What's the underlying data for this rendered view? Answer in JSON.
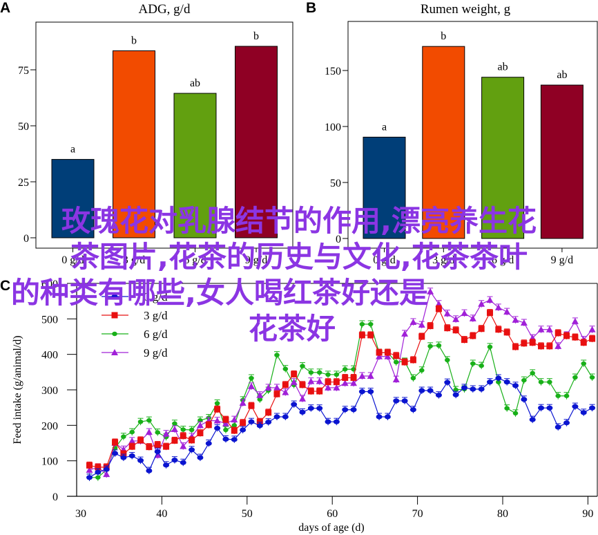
{
  "watermark": {
    "lines": [
      "玫瑰花对乳腺结节的作用,漂亮养生花",
      "茶图片,花茶的历史与文化,花茶茶叶",
      "的种类有哪些,女人喝红茶好还是",
      "花茶好"
    ],
    "color": "#8B35E3"
  },
  "chart_data": [
    {
      "panel": "A",
      "type": "bar",
      "title": "ADG, g/d",
      "xlabel": "",
      "ylabel": "",
      "categories": [
        "0 g/d",
        "3 g/d",
        "6 g/d",
        "9 g/d"
      ],
      "values": [
        35,
        83.5,
        64.5,
        85.5
      ],
      "significance": [
        "a",
        "b",
        "ab",
        "b"
      ],
      "colors": [
        "#003E78",
        "#F24B00",
        "#62A010",
        "#8F0024"
      ],
      "ylim": [
        0,
        95
      ],
      "yticks": [
        0,
        25,
        50,
        75
      ],
      "ytick_labels": [
        "0",
        "25",
        "50",
        "75"
      ],
      "grid": false
    },
    {
      "panel": "B",
      "type": "bar",
      "title": "Rumen weight, g",
      "xlabel": "",
      "ylabel": "",
      "categories": [
        "0 g/d",
        "3 g/d",
        "6 g/d",
        "9 g/d"
      ],
      "values": [
        90.5,
        171.5,
        144,
        137
      ],
      "significance": [
        "a",
        "b",
        "ab",
        "ab"
      ],
      "colors": [
        "#003E78",
        "#F24B00",
        "#62A010",
        "#8F0024"
      ],
      "ylim": [
        0,
        193
      ],
      "yticks": [
        0,
        50,
        100,
        150
      ],
      "ytick_labels": [
        "0",
        "50",
        "100",
        "150"
      ],
      "grid": false
    },
    {
      "panel": "C",
      "type": "line",
      "title": "",
      "xlabel": "days of age (d)",
      "ylabel": "Feed intake (g/animal/d)",
      "xlim": [
        30,
        91
      ],
      "ylim": [
        0,
        600
      ],
      "xticks": [
        30,
        40,
        50,
        60,
        70,
        80,
        90
      ],
      "xtick_labels": [
        "30",
        "40",
        "50",
        "60",
        "70",
        "80",
        "90"
      ],
      "yticks": [
        0,
        100,
        200,
        300,
        400,
        500,
        600
      ],
      "ytick_labels": [
        "0",
        "100",
        "200",
        "300",
        "400",
        "500",
        "600"
      ],
      "legend_position": "top-left",
      "grid": false,
      "x": [
        31,
        32,
        33,
        34,
        35,
        36,
        37,
        38,
        39,
        40,
        41,
        42,
        43,
        44,
        45,
        46,
        47,
        48,
        49,
        50,
        51,
        52,
        53,
        54,
        55,
        56,
        57,
        58,
        59,
        60,
        61,
        62,
        63,
        64,
        65,
        66,
        67,
        68,
        69,
        70,
        71,
        72,
        73,
        74,
        75,
        76,
        77,
        78,
        79,
        80,
        81,
        82,
        83,
        84,
        85,
        86,
        87,
        88,
        89,
        90
      ],
      "series": [
        {
          "name": "0 g/d",
          "color": "#0A14D0",
          "marker": "circle",
          "values": [
            53,
            68,
            76,
            121,
            109,
            114,
            101,
            72,
            126,
            88,
            102,
            95,
            131,
            109,
            149,
            192,
            161,
            160,
            187,
            210,
            199,
            209,
            224,
            224,
            259,
            237,
            248,
            248,
            210,
            210,
            244,
            244,
            295,
            295,
            224,
            224,
            269,
            269,
            244,
            298,
            298,
            285,
            321,
            286,
            306,
            302,
            302,
            322,
            333,
            322,
            312,
            273,
            216,
            249,
            249,
            195,
            207,
            253,
            236,
            249
          ]
        },
        {
          "name": "3 g/d",
          "color": "#E81010",
          "marker": "square",
          "values": [
            87,
            82,
            82,
            152,
            119,
            140,
            158,
            139,
            145,
            140,
            157,
            170,
            158,
            178,
            201,
            245,
            216,
            185,
            207,
            255,
            210,
            236,
            288,
            314,
            344,
            314,
            296,
            296,
            322,
            322,
            334,
            334,
            454,
            454,
            405,
            405,
            396,
            378,
            384,
            450,
            480,
            528,
            474,
            468,
            441,
            452,
            472,
            517,
            470,
            462,
            421,
            431,
            433,
            423,
            423,
            460,
            452,
            448,
            433,
            444
          ]
        },
        {
          "name": "6 g/d",
          "color": "#18B018",
          "marker": "diamond",
          "values": [
            53,
            53,
            75,
            136,
            168,
            181,
            210,
            214,
            180,
            167,
            205,
            188,
            187,
            214,
            221,
            262,
            187,
            200,
            271,
            333,
            273,
            298,
            398,
            359,
            314,
            367,
            349,
            349,
            343,
            343,
            358,
            358,
            485,
            485,
            405,
            405,
            378,
            380,
            333,
            355,
            423,
            425,
            384,
            300,
            302,
            374,
            368,
            421,
            322,
            248,
            234,
            327,
            347,
            322,
            322,
            283,
            283,
            335,
            374,
            335
          ]
        },
        {
          "name": "9 g/d",
          "color": "#A020D8",
          "marker": "triangle",
          "values": [
            74,
            82,
            62,
            150,
            132,
            156,
            156,
            181,
            116,
            176,
            189,
            141,
            168,
            200,
            213,
            213,
            205,
            216,
            263,
            310,
            285,
            306,
            306,
            293,
            322,
            275,
            324,
            324,
            306,
            306,
            319,
            319,
            339,
            339,
            394,
            394,
            329,
            458,
            491,
            483,
            577,
            542,
            515,
            499,
            516,
            501,
            542,
            553,
            532,
            520,
            497,
            489,
            446,
            470,
            470,
            423,
            454,
            493,
            441,
            470
          ]
        }
      ]
    }
  ],
  "panels": {
    "a": {
      "letter": "A"
    },
    "b": {
      "letter": "B"
    },
    "c": {
      "letter": "C"
    }
  }
}
